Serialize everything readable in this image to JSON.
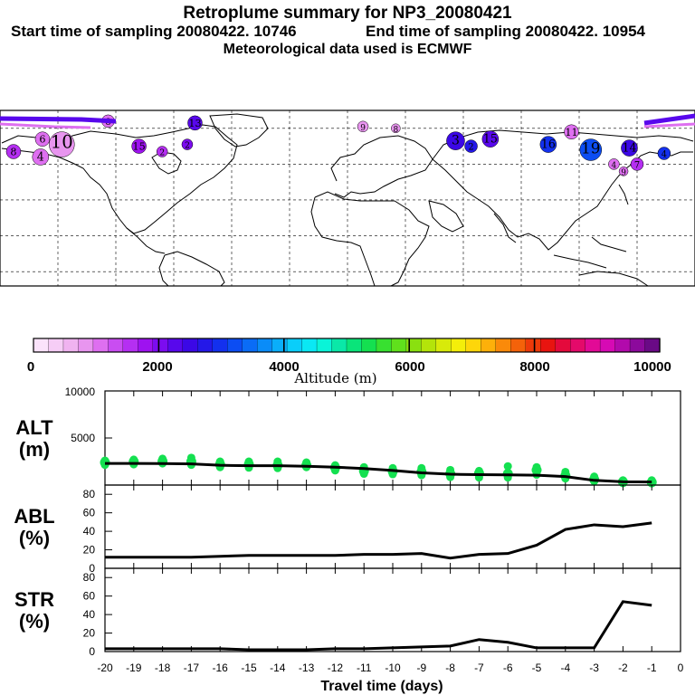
{
  "header": {
    "title": "Retroplume summary for NP3_20080421",
    "start": "Start time of sampling 20080422. 10746",
    "end": "End time of sampling 20080422. 10954",
    "met": "Meteorological data used is ECMWF"
  },
  "colorbar": {
    "label": "Altitude (m)",
    "tick_labels": [
      "0",
      "2000",
      "4000",
      "6000",
      "8000",
      "10000"
    ],
    "colors": [
      "#fbe3fb",
      "#f6cdf6",
      "#f0b3f0",
      "#e895ef",
      "#de6ff0",
      "#c94df1",
      "#b52ff2",
      "#9e12f0",
      "#7c0cf0",
      "#5808ec",
      "#3b08e6",
      "#2418e8",
      "#1330ee",
      "#0c4df3",
      "#0a6cf6",
      "#0a8cf8",
      "#0aaefa",
      "#0acefa",
      "#0ae8f4",
      "#0af4d8",
      "#0ae8a8",
      "#0ae47a",
      "#14e050",
      "#38e030",
      "#60e01c",
      "#8ae010",
      "#b4e40a",
      "#d8ea0a",
      "#f4ee0a",
      "#fed60a",
      "#fdb00a",
      "#fa8a0a",
      "#f4620a",
      "#ee3a0a",
      "#e81410",
      "#e40a3c",
      "#e40a6a",
      "#e20a96",
      "#d60ab4",
      "#b20aac",
      "#8c0a9c",
      "#6a0a86"
    ]
  },
  "map": {
    "markers": [
      {
        "label": "6",
        "lon": -158,
        "lat": 74,
        "size": 8,
        "color": "#de6ff0"
      },
      {
        "label": "10",
        "lon": -148,
        "lat": 71,
        "size": 14,
        "color": "#e895ef"
      },
      {
        "label": "4",
        "lon": -159,
        "lat": 64,
        "size": 9,
        "color": "#de6ff0"
      },
      {
        "label": "8",
        "lon": -173,
        "lat": 67,
        "size": 8,
        "color": "#b52ff2"
      },
      {
        "label": "8",
        "lon": -124,
        "lat": 84,
        "size": 7,
        "color": "#de6ff0"
      },
      {
        "label": "13",
        "lon": -79,
        "lat": 83,
        "size": 8,
        "color": "#5808ec"
      },
      {
        "label": "15",
        "lon": -108,
        "lat": 70,
        "size": 8,
        "color": "#9e12f0"
      },
      {
        "label": "2",
        "lon": -96,
        "lat": 67,
        "size": 6,
        "color": "#b52ff2"
      },
      {
        "label": "2",
        "lon": -83,
        "lat": 71,
        "size": 6,
        "color": "#7c0cf0"
      },
      {
        "label": "9",
        "lon": 8,
        "lat": 81,
        "size": 6,
        "color": "#e895ef"
      },
      {
        "label": "8",
        "lon": 25,
        "lat": 80,
        "size": 5,
        "color": "#e895ef"
      },
      {
        "label": "3",
        "lon": 56,
        "lat": 73,
        "size": 10,
        "color": "#3b08e6"
      },
      {
        "label": "15",
        "lon": 74,
        "lat": 74,
        "size": 9,
        "color": "#5808ec"
      },
      {
        "label": "2",
        "lon": 64,
        "lat": 70,
        "size": 7,
        "color": "#2418e8"
      },
      {
        "label": "16",
        "lon": 104,
        "lat": 71,
        "size": 9,
        "color": "#1330ee"
      },
      {
        "label": "19",
        "lon": 126,
        "lat": 68,
        "size": 12,
        "color": "#0c4df3"
      },
      {
        "label": "11",
        "lon": 116,
        "lat": 78,
        "size": 8,
        "color": "#de6ff0"
      },
      {
        "label": "14",
        "lon": 146,
        "lat": 69,
        "size": 9,
        "color": "#3b08e6"
      },
      {
        "label": "4",
        "lon": 164,
        "lat": 66,
        "size": 7,
        "color": "#1330ee"
      },
      {
        "label": "7",
        "lon": 150,
        "lat": 60,
        "size": 7,
        "color": "#b52ff2"
      },
      {
        "label": "4",
        "lon": 138,
        "lat": 60,
        "size": 6,
        "color": "#de6ff0"
      },
      {
        "label": "9",
        "lon": 143,
        "lat": 56,
        "size": 5,
        "color": "#de6ff0"
      }
    ]
  },
  "chart_data": [
    {
      "type": "line",
      "name": "altitude",
      "side_label_1": "ALT",
      "side_label_2": "(m)",
      "ylim": [
        0,
        10000
      ],
      "yticks": [
        "10000",
        "5000"
      ],
      "x": [
        -20,
        -19,
        -18,
        -17,
        -16,
        -15,
        -14,
        -13,
        -12,
        -11,
        -10,
        -9,
        -8,
        -7,
        -6,
        -5,
        -4,
        -3,
        -2,
        -1
      ],
      "median": [
        2300,
        2300,
        2280,
        2250,
        2100,
        2050,
        2050,
        2000,
        1900,
        1750,
        1550,
        1300,
        1150,
        1100,
        1080,
        1050,
        900,
        500,
        350,
        320
      ],
      "cluster_altitudes": [
        [
          2600,
          2400,
          2150
        ],
        [
          2700,
          2500,
          2200
        ],
        [
          2800,
          2550,
          2300
        ],
        [
          2900,
          2500,
          2150
        ],
        [
          2500,
          2200,
          1900
        ],
        [
          2500,
          2200,
          1850
        ],
        [
          2500,
          2100,
          1800
        ],
        [
          2400,
          2100,
          1900
        ],
        [
          2100,
          1850,
          1550
        ],
        [
          1900,
          1500,
          1200
        ],
        [
          1800,
          1450,
          1150
        ],
        [
          1800,
          1400,
          1050
        ],
        [
          1600,
          1200,
          850
        ],
        [
          1500,
          1250,
          800
        ],
        [
          2000,
          1200,
          800
        ],
        [
          1900,
          1600,
          1100
        ],
        [
          1400,
          1000,
          700
        ],
        [
          900,
          600,
          400
        ],
        [
          500,
          350,
          200
        ],
        [
          500,
          300,
          180
        ]
      ]
    },
    {
      "type": "line",
      "name": "abl",
      "side_label_1": "ABL",
      "side_label_2": "(%)",
      "ylim": [
        0,
        90
      ],
      "yticks": [
        "80",
        "60",
        "40",
        "20",
        "0"
      ],
      "x": [
        -20,
        -19,
        -18,
        -17,
        -16,
        -15,
        -14,
        -13,
        -12,
        -11,
        -10,
        -9,
        -8,
        -7,
        -6,
        -5,
        -4,
        -3,
        -2,
        -1
      ],
      "values": [
        12,
        12,
        12,
        12,
        13,
        14,
        14,
        14,
        14,
        15,
        15,
        16,
        11,
        15,
        16,
        25,
        42,
        47,
        45,
        49
      ]
    },
    {
      "type": "line",
      "name": "str",
      "side_label_1": "STR",
      "side_label_2": "(%)",
      "ylim": [
        0,
        90
      ],
      "yticks": [
        "80",
        "60",
        "40",
        "20",
        "0"
      ],
      "x": [
        -20,
        -19,
        -18,
        -17,
        -16,
        -15,
        -14,
        -13,
        -12,
        -11,
        -10,
        -9,
        -8,
        -7,
        -6,
        -5,
        -4,
        -3,
        -2,
        -1
      ],
      "values": [
        3,
        3,
        3,
        3,
        3,
        2,
        2,
        2,
        3,
        3,
        4,
        5,
        6,
        13,
        10,
        4,
        4,
        4,
        54,
        50
      ],
      "xlabel": "Travel time (days)",
      "xticks": [
        "-20",
        "-19",
        "-18",
        "-17",
        "-16",
        "-15",
        "-14",
        "-13",
        "-12",
        "-11",
        "-10",
        "-9",
        "-8",
        "-7",
        "-6",
        "-5",
        "-4",
        "-3",
        "-2",
        "-1",
        "0"
      ]
    }
  ]
}
